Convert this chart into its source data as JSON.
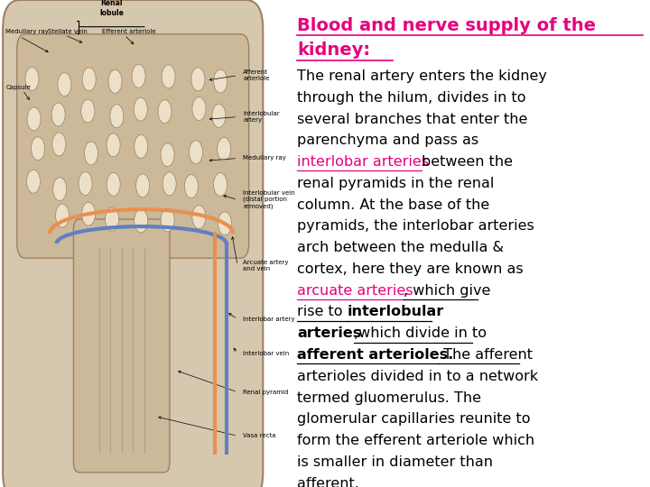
{
  "bg_color": "#ffffff",
  "title_color": "#e6007e",
  "title_line1": "Blood and nerve supply of the",
  "title_line2": "kidney:",
  "title_font_size": 14,
  "body_font_size": 11.5,
  "lines": [
    [
      {
        "t": "The renal artery enters the kidney",
        "c": "#000000",
        "b": false,
        "u": false
      }
    ],
    [
      {
        "t": "through the hilum, divides in to",
        "c": "#000000",
        "b": false,
        "u": false
      }
    ],
    [
      {
        "t": "several branches that enter the",
        "c": "#000000",
        "b": false,
        "u": false
      }
    ],
    [
      {
        "t": "parenchyma and pass as",
        "c": "#000000",
        "b": false,
        "u": false
      }
    ],
    [
      {
        "t": "interlobar arteries ",
        "c": "#e6007e",
        "b": false,
        "u": true
      },
      {
        "t": "between the",
        "c": "#000000",
        "b": false,
        "u": false
      }
    ],
    [
      {
        "t": "renal pyramids in the renal",
        "c": "#000000",
        "b": false,
        "u": false
      }
    ],
    [
      {
        "t": "column. At the base of the",
        "c": "#000000",
        "b": false,
        "u": false
      }
    ],
    [
      {
        "t": "pyramids, the interlobar arteries",
        "c": "#000000",
        "b": false,
        "u": false
      }
    ],
    [
      {
        "t": "arch between the medulla &",
        "c": "#000000",
        "b": false,
        "u": false
      }
    ],
    [
      {
        "t": "cortex, here they are known as",
        "c": "#000000",
        "b": false,
        "u": false
      }
    ],
    [
      {
        "t": "arcuate arteries ",
        "c": "#e6007e",
        "b": false,
        "u": true
      },
      {
        "t": ", which give",
        "c": "#000000",
        "b": false,
        "u": true
      }
    ],
    [
      {
        "t": "rise to ",
        "c": "#000000",
        "b": false,
        "u": true
      },
      {
        "t": "interlobular",
        "c": "#000000",
        "b": true,
        "u": true
      }
    ],
    [
      {
        "t": "arteries",
        "c": "#000000",
        "b": true,
        "u": false
      },
      {
        "t": ",which divide in to",
        "c": "#000000",
        "b": false,
        "u": true
      }
    ],
    [
      {
        "t": "afferent arterioles.",
        "c": "#000000",
        "b": true,
        "u": true
      },
      {
        "t": " The afferent",
        "c": "#000000",
        "b": false,
        "u": true
      }
    ],
    [
      {
        "t": "arterioles divided in to a network",
        "c": "#000000",
        "b": false,
        "u": false
      }
    ],
    [
      {
        "t": "termed gluomerulus. The",
        "c": "#000000",
        "b": false,
        "u": false
      }
    ],
    [
      {
        "t": "glomerular capillaries reunite to",
        "c": "#000000",
        "b": false,
        "u": false
      }
    ],
    [
      {
        "t": "form the efferent arteriole which",
        "c": "#000000",
        "b": false,
        "u": false
      }
    ],
    [
      {
        "t": "is smaller in diameter than",
        "c": "#000000",
        "b": false,
        "u": false
      }
    ],
    [
      {
        "t": "afferent.",
        "c": "#000000",
        "b": false,
        "u": false
      }
    ]
  ]
}
